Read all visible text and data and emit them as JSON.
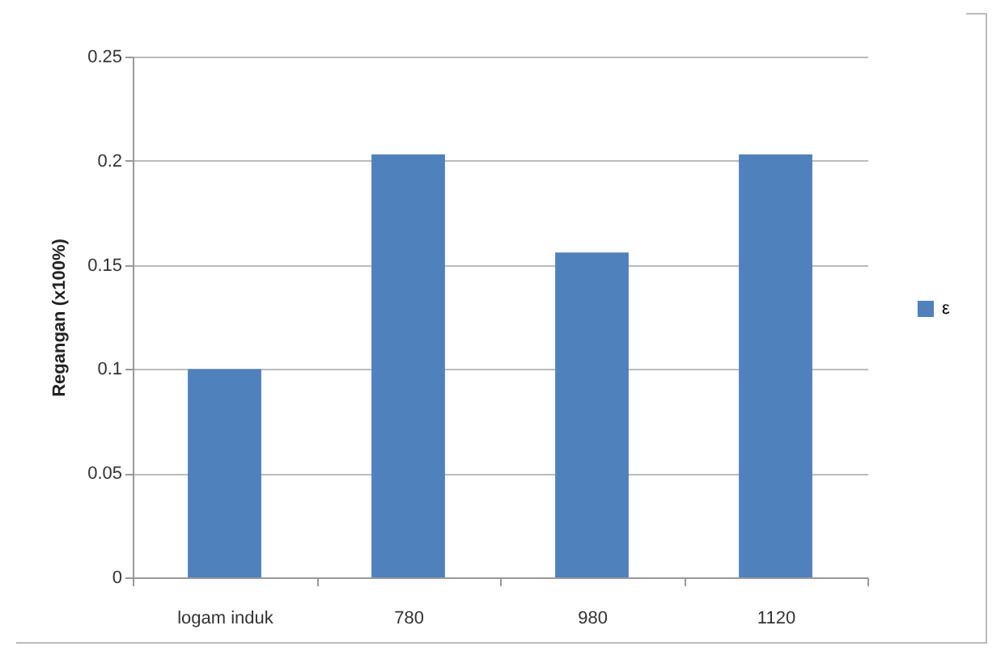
{
  "chart_data": {
    "type": "bar",
    "ylabel": "Regangan (x100%)",
    "categories": [
      "logam induk",
      "780",
      "980",
      "1120"
    ],
    "series": [
      {
        "name": "ε",
        "color": "#4f81bd",
        "values": [
          0.1,
          0.203,
          0.156,
          0.203
        ]
      }
    ],
    "ylim": [
      0,
      0.25
    ],
    "yticks": [
      0,
      0.05,
      0.1,
      0.15,
      0.2,
      0.25
    ],
    "grid": "y",
    "legend": "right"
  }
}
